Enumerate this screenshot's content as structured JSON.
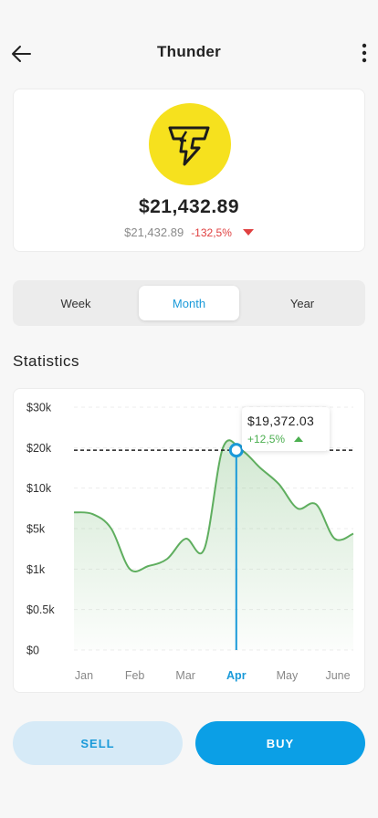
{
  "header": {
    "title": "Thunder"
  },
  "coin": {
    "price": "$21,432.89",
    "sub_price": "$21,432.89",
    "change": "-132,5%",
    "logo_color": "#f6e11e",
    "change_color": "#e04040"
  },
  "period_tabs": [
    {
      "label": "Week",
      "active": false
    },
    {
      "label": "Month",
      "active": true
    },
    {
      "label": "Year",
      "active": false
    }
  ],
  "statistics": {
    "title": "Statistics"
  },
  "tooltip": {
    "price": "$19,372.03",
    "change": "+12,5%",
    "change_color": "#4caf50"
  },
  "chart_data": {
    "type": "area",
    "y_tick_labels": [
      "$30k",
      "$20k",
      "$10k",
      "$5k",
      "$1k",
      "$0.5k",
      "$0"
    ],
    "categories": [
      "Jan",
      "Feb",
      "Mar",
      "Apr",
      "May",
      "June"
    ],
    "selected_category": "Apr",
    "y_scale": "non-linear (ticks: $0, $0.5k, $1k, $5k, $10k, $20k, $30k)",
    "series": [
      {
        "color": "#5fae5f",
        "points": [
          {
            "x": "Jan",
            "y": 7000
          },
          {
            "x": "Jan",
            "y": 6800
          },
          {
            "x": "Jan",
            "y": 5000
          },
          {
            "x": "Feb",
            "y": 1000
          },
          {
            "x": "Feb",
            "y": 1300
          },
          {
            "x": "Feb",
            "y": 2000
          },
          {
            "x": "Mar",
            "y": 4000
          },
          {
            "x": "Mar",
            "y": 3000
          },
          {
            "x": "Mar",
            "y": 20000
          },
          {
            "x": "Apr",
            "y": 19372.03
          },
          {
            "x": "Apr",
            "y": 15000
          },
          {
            "x": "May",
            "y": 11000
          },
          {
            "x": "May",
            "y": 7500
          },
          {
            "x": "May",
            "y": 8000
          },
          {
            "x": "June",
            "y": 4000
          },
          {
            "x": "June",
            "y": 4500
          }
        ]
      }
    ],
    "reference_line": {
      "y": 19372.03,
      "style": "dashed"
    },
    "selected_point": {
      "x": "Apr",
      "y": 19372.03
    },
    "grid": true,
    "accent_color": "#1a9ad9"
  },
  "actions": {
    "sell_label": "SELL",
    "buy_label": "BUY"
  }
}
